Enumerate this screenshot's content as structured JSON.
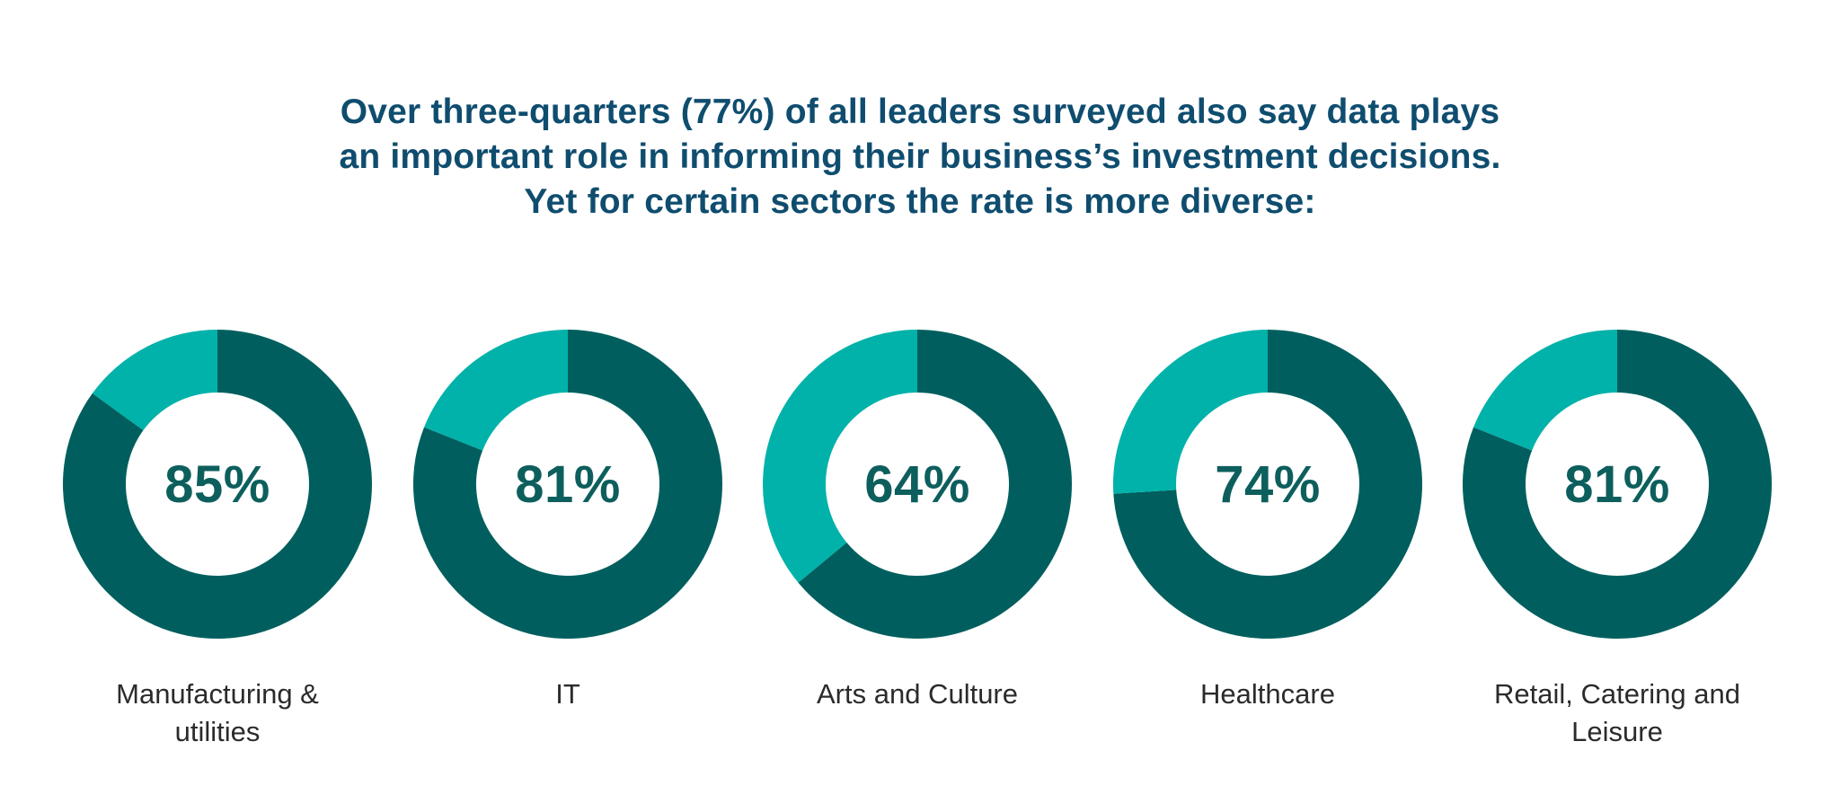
{
  "headline": {
    "lines": [
      "Over three-quarters (77%) of all leaders surveyed also say data plays",
      "an important role in informing their business’s investment decisions.",
      "Yet for certain sectors the rate is more diverse:"
    ]
  },
  "colors": {
    "primary": "#005f5e",
    "secondary": "#00b2a9",
    "value_text": "#0d5f5d",
    "headline_text": "#0f4d6f",
    "label_text": "#2b2b2b",
    "background": "#ffffff"
  },
  "chart_data": {
    "type": "pie",
    "variant": "donut",
    "unit": "%",
    "categories": [
      "Manufacturing & utilities",
      "IT",
      "Arts and Culture",
      "Healthcare",
      "Retail, Catering and Leisure"
    ],
    "values": [
      85,
      81,
      64,
      74,
      81
    ],
    "value_labels": [
      "85%",
      "81%",
      "64%",
      "74%",
      "81%"
    ],
    "label_lines": [
      [
        "Manufacturing &",
        "utilities"
      ],
      [
        "IT"
      ],
      [
        "Arts and Culture"
      ],
      [
        "Healthcare"
      ],
      [
        "Retail, Catering and",
        "Leisure"
      ]
    ],
    "total": 100
  }
}
